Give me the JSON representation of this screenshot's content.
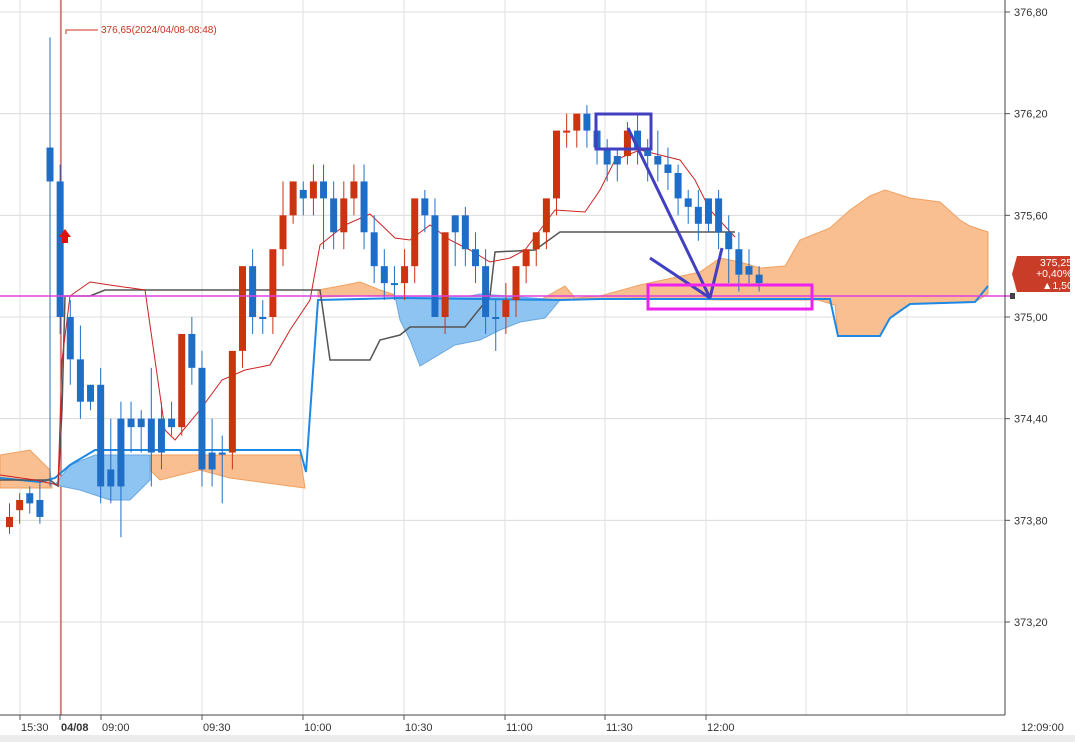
{
  "chart_data": {
    "type": "candlestick",
    "y_axis": {
      "ticks": [
        "376,80",
        "376,20",
        "375,60",
        "375,00",
        "374,40",
        "373,80",
        "373,20"
      ],
      "tick_values": [
        376.8,
        376.2,
        375.6,
        375.0,
        374.4,
        373.8,
        373.2
      ],
      "range": [
        372.6,
        376.88
      ]
    },
    "x_axis": {
      "ticks": [
        {
          "label": "15:30",
          "bold": false
        },
        {
          "label": "04/08",
          "bold": true
        },
        {
          "label": "09:00",
          "bold": false
        },
        {
          "label": "09:30",
          "bold": false
        },
        {
          "label": "10:00",
          "bold": false
        },
        {
          "label": "10:30",
          "bold": false
        },
        {
          "label": "11:00",
          "bold": false
        },
        {
          "label": "11:30",
          "bold": false
        },
        {
          "label": "12:00",
          "bold": false
        }
      ],
      "time_label": "12:09:00"
    },
    "high_annotation": "376,65(2024/04/08-08:48)",
    "price_badge": {
      "price": "375,25",
      "pct": "+0,40%",
      "change": "▲1,50"
    },
    "horizontal_line": 375.12,
    "colors": {
      "up": "#cc3311",
      "down": "#1e6ec8",
      "kumo_bull": "#f9bf90",
      "kumo_bear": "#8ec4f2",
      "senkou_b": "#1e88e5",
      "kijun": "#555555",
      "tenkan": "#cc2222",
      "hline": "#e040e0",
      "box_blue": "#4040c0",
      "box_magenta": "#ee22ee"
    },
    "candles": [
      [
        373.82,
        373.9,
        373.76,
        373.72,
        "up"
      ],
      [
        373.86,
        373.96,
        373.92,
        373.78,
        "up"
      ],
      [
        373.96,
        374.0,
        373.9,
        373.84,
        "down"
      ],
      [
        373.92,
        374.02,
        373.82,
        373.78,
        "down"
      ],
      [
        376.0,
        376.65,
        375.8,
        374.0,
        "down"
      ],
      [
        375.8,
        375.9,
        375.0,
        374.9,
        "down"
      ],
      [
        375.0,
        375.1,
        374.75,
        374.6,
        "down"
      ],
      [
        374.75,
        374.95,
        374.5,
        374.4,
        "down"
      ],
      [
        374.5,
        374.6,
        374.6,
        374.45,
        "down"
      ],
      [
        374.6,
        374.7,
        374.0,
        373.9,
        "down"
      ],
      [
        374.1,
        374.4,
        374.0,
        373.9,
        "down"
      ],
      [
        374.0,
        374.5,
        374.4,
        373.7,
        "down"
      ],
      [
        374.4,
        374.5,
        374.35,
        374.2,
        "down"
      ],
      [
        374.35,
        374.45,
        374.4,
        374.2,
        "down"
      ],
      [
        374.2,
        374.7,
        374.4,
        374.0,
        "down"
      ],
      [
        374.4,
        374.5,
        374.2,
        374.1,
        "down"
      ],
      [
        374.4,
        374.5,
        374.35,
        374.3,
        "down"
      ],
      [
        374.35,
        374.9,
        374.9,
        374.3,
        "up"
      ],
      [
        374.9,
        375.0,
        374.7,
        374.6,
        "down"
      ],
      [
        374.7,
        374.8,
        374.1,
        374.0,
        "down"
      ],
      [
        374.1,
        374.4,
        374.2,
        374.0,
        "down"
      ],
      [
        374.2,
        374.3,
        374.2,
        373.9,
        "down"
      ],
      [
        374.2,
        374.8,
        374.8,
        374.1,
        "up"
      ],
      [
        374.8,
        375.3,
        375.3,
        374.7,
        "up"
      ],
      [
        375.3,
        375.4,
        375.0,
        374.9,
        "down"
      ],
      [
        375.0,
        375.1,
        375.0,
        374.9,
        "down"
      ],
      [
        375.0,
        375.2,
        375.4,
        374.9,
        "up"
      ],
      [
        375.4,
        375.8,
        375.6,
        375.3,
        "up"
      ],
      [
        375.6,
        375.75,
        375.8,
        375.55,
        "up"
      ],
      [
        375.75,
        375.8,
        375.7,
        375.6,
        "down"
      ],
      [
        375.7,
        375.9,
        375.8,
        375.6,
        "up"
      ],
      [
        375.8,
        375.9,
        375.7,
        375.4,
        "down"
      ],
      [
        375.7,
        375.8,
        375.5,
        375.4,
        "down"
      ],
      [
        375.5,
        375.8,
        375.7,
        375.4,
        "up"
      ],
      [
        375.7,
        375.9,
        375.8,
        375.6,
        "up"
      ],
      [
        375.8,
        375.9,
        375.5,
        375.4,
        "down"
      ],
      [
        375.5,
        375.6,
        375.3,
        375.2,
        "down"
      ],
      [
        375.3,
        375.4,
        375.2,
        375.1,
        "down"
      ],
      [
        375.2,
        375.3,
        375.2,
        375.1,
        "down"
      ],
      [
        375.2,
        375.4,
        375.3,
        375.1,
        "up"
      ],
      [
        375.3,
        375.6,
        375.7,
        375.2,
        "up"
      ],
      [
        375.7,
        375.75,
        375.6,
        375.5,
        "down"
      ],
      [
        375.6,
        375.7,
        375.0,
        375.0,
        "down"
      ],
      [
        375.0,
        375.4,
        375.5,
        374.9,
        "up"
      ],
      [
        375.5,
        375.6,
        375.6,
        375.3,
        "down"
      ],
      [
        375.6,
        375.65,
        375.4,
        375.3,
        "down"
      ],
      [
        375.4,
        375.5,
        375.3,
        375.2,
        "down"
      ],
      [
        375.3,
        375.4,
        375.0,
        374.9,
        "down"
      ],
      [
        375.0,
        375.1,
        375.0,
        374.8,
        "down"
      ],
      [
        375.0,
        375.2,
        375.1,
        374.9,
        "up"
      ],
      [
        375.1,
        375.3,
        375.3,
        375.0,
        "up"
      ],
      [
        375.3,
        375.4,
        375.4,
        375.2,
        "up"
      ],
      [
        375.4,
        375.5,
        375.5,
        375.3,
        "up"
      ],
      [
        375.5,
        375.7,
        375.7,
        375.4,
        "up"
      ],
      [
        375.7,
        376.1,
        376.1,
        375.6,
        "up"
      ],
      [
        376.1,
        376.2,
        376.1,
        376.0,
        "up"
      ],
      [
        376.1,
        376.2,
        376.2,
        376.0,
        "up"
      ],
      [
        376.2,
        376.25,
        376.1,
        376.0,
        "down"
      ],
      [
        376.1,
        376.15,
        376.0,
        375.9,
        "down"
      ],
      [
        376.0,
        376.05,
        375.9,
        375.8,
        "down"
      ],
      [
        375.9,
        376.0,
        375.95,
        375.8,
        "down"
      ],
      [
        375.95,
        376.15,
        376.1,
        375.9,
        "up"
      ],
      [
        376.1,
        376.2,
        376.0,
        375.9,
        "down"
      ],
      [
        376.0,
        376.05,
        375.95,
        375.8,
        "down"
      ],
      [
        375.95,
        376.1,
        375.9,
        375.8,
        "down"
      ],
      [
        375.9,
        376.0,
        375.85,
        375.75,
        "down"
      ],
      [
        375.85,
        375.9,
        375.7,
        375.6,
        "down"
      ],
      [
        375.7,
        375.75,
        375.65,
        375.55,
        "down"
      ],
      [
        375.65,
        375.75,
        375.55,
        375.45,
        "down"
      ],
      [
        375.55,
        375.6,
        375.7,
        375.5,
        "down"
      ],
      [
        375.7,
        375.75,
        375.5,
        375.4,
        "down"
      ],
      [
        375.5,
        375.6,
        375.4,
        375.2,
        "down"
      ],
      [
        375.4,
        375.5,
        375.25,
        375.15,
        "down"
      ],
      [
        375.3,
        375.4,
        375.25,
        375.2,
        "down"
      ],
      [
        375.25,
        375.3,
        375.2,
        375.15,
        "down"
      ]
    ]
  }
}
